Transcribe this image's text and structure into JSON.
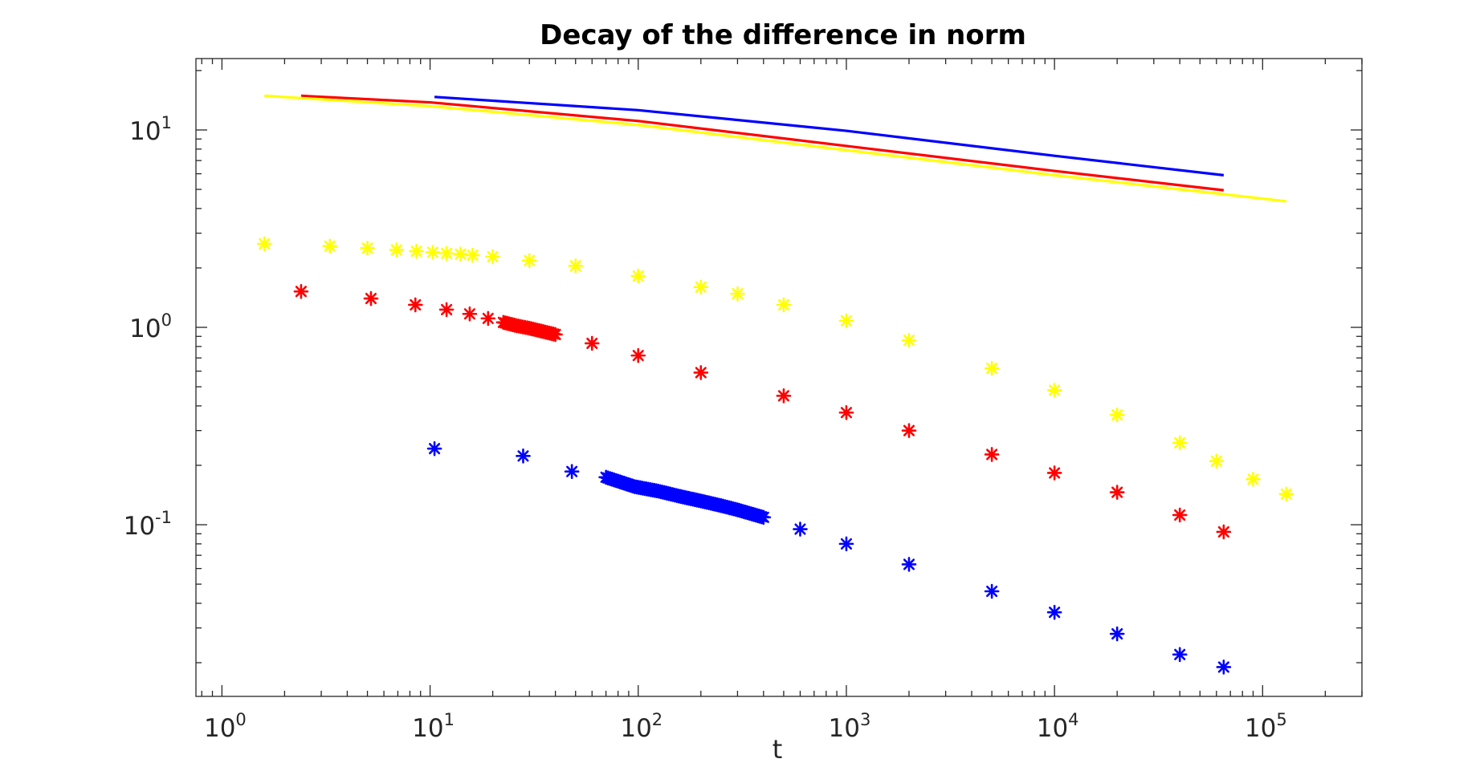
{
  "chart_data": {
    "type": "scatter",
    "title": "Decay of the difference in norm",
    "xlabel": "t",
    "ylabel": "",
    "xscale": "log",
    "yscale": "log",
    "xlim": [
      0.75,
      300000
    ],
    "ylim": [
      0.0135,
      23
    ],
    "grid": false,
    "legend": "none",
    "x_ticks": [
      {
        "base": "10",
        "exp": "0",
        "value": 1
      },
      {
        "base": "10",
        "exp": "1",
        "value": 10
      },
      {
        "base": "10",
        "exp": "2",
        "value": 100
      },
      {
        "base": "10",
        "exp": "3",
        "value": 1000
      },
      {
        "base": "10",
        "exp": "4",
        "value": 10000
      },
      {
        "base": "10",
        "exp": "5",
        "value": 100000
      }
    ],
    "y_ticks": [
      {
        "base": "10",
        "exp": "-1",
        "value": 0.1
      },
      {
        "base": "10",
        "exp": "0",
        "value": 1
      },
      {
        "base": "10",
        "exp": "1",
        "value": 10
      }
    ],
    "series": [
      {
        "name": "blue-line",
        "kind": "line",
        "color": "#0000ff",
        "x": [
          10.5,
          100,
          1000,
          10000,
          65000
        ],
        "y": [
          14.7,
          12.6,
          9.9,
          7.4,
          5.9
        ]
      },
      {
        "name": "red-line",
        "kind": "line",
        "color": "#ff0000",
        "x": [
          2.4,
          10,
          100,
          1000,
          10000,
          65000
        ],
        "y": [
          14.9,
          13.8,
          11.1,
          8.3,
          6.2,
          4.95
        ]
      },
      {
        "name": "yellow-line",
        "kind": "line",
        "color": "#ffff00",
        "x": [
          1.6,
          10,
          100,
          1000,
          10000,
          130000
        ],
        "y": [
          14.9,
          13.2,
          10.6,
          7.9,
          5.9,
          4.35
        ]
      },
      {
        "name": "yellow-stars",
        "kind": "markers",
        "color": "#ffff00",
        "x": [
          1.6,
          3.3,
          5.0,
          6.9,
          8.6,
          10.3,
          12,
          14,
          16,
          20,
          30,
          50,
          100,
          200,
          300,
          500,
          1000,
          2000,
          5000,
          10000,
          20000,
          40000,
          60000,
          90000,
          130000
        ],
        "y": [
          2.65,
          2.58,
          2.52,
          2.47,
          2.43,
          2.4,
          2.37,
          2.35,
          2.32,
          2.28,
          2.18,
          2.05,
          1.82,
          1.6,
          1.48,
          1.3,
          1.08,
          0.86,
          0.62,
          0.48,
          0.36,
          0.26,
          0.21,
          0.17,
          0.143
        ]
      },
      {
        "name": "red-stars",
        "kind": "markers",
        "color": "#ff0000",
        "x": [
          2.4,
          5.2,
          8.5,
          12,
          15.5,
          19,
          22.5,
          26,
          30,
          40,
          60,
          100,
          200,
          500,
          1000,
          2000,
          5000,
          10000,
          20000,
          40000,
          65000
        ],
        "y": [
          1.52,
          1.4,
          1.3,
          1.23,
          1.17,
          1.11,
          1.06,
          1.02,
          0.99,
          0.92,
          0.83,
          0.72,
          0.59,
          0.45,
          0.37,
          0.3,
          0.227,
          0.183,
          0.146,
          0.112,
          0.092
        ]
      },
      {
        "name": "blue-stars",
        "kind": "markers",
        "color": "#0000ff",
        "x": [
          10.5,
          28,
          48,
          70,
          96,
          125,
          160,
          200,
          250,
          300,
          400,
          600,
          1000,
          2000,
          5000,
          10000,
          20000,
          40000,
          65000
        ],
        "y": [
          0.243,
          0.223,
          0.186,
          0.174,
          0.156,
          0.148,
          0.139,
          0.132,
          0.125,
          0.119,
          0.109,
          0.095,
          0.08,
          0.063,
          0.046,
          0.036,
          0.028,
          0.022,
          0.019
        ]
      }
    ]
  }
}
